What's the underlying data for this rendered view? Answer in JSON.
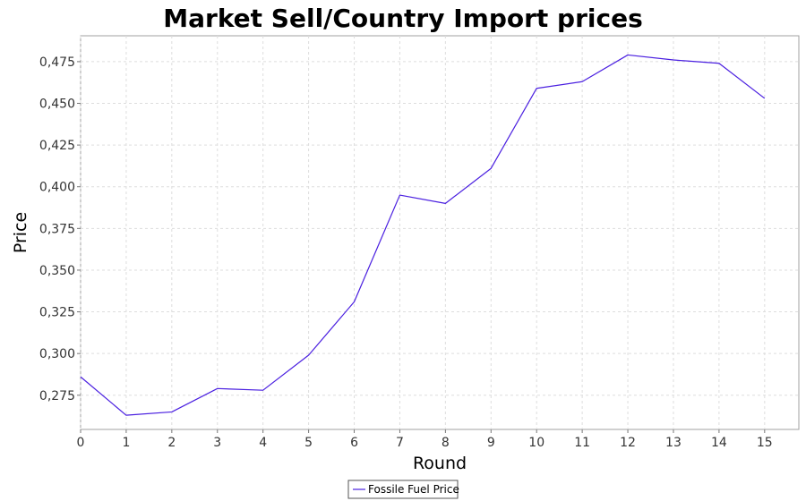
{
  "chart_data": {
    "type": "line",
    "title": "Market Sell/Country Import prices",
    "xlabel": "Round",
    "ylabel": "Price",
    "xlim": [
      0,
      15.75
    ],
    "ylim": [
      0.2545,
      0.4905
    ],
    "grid": true,
    "legend_position": "bottom-center",
    "x_ticks": [
      0,
      1,
      2,
      3,
      4,
      5,
      6,
      7,
      8,
      9,
      10,
      11,
      12,
      13,
      14,
      15
    ],
    "x_tick_labels": [
      "0",
      "1",
      "2",
      "3",
      "4",
      "5",
      "6",
      "7",
      "8",
      "9",
      "10",
      "11",
      "12",
      "13",
      "14",
      "15"
    ],
    "y_ticks": [
      0.275,
      0.3,
      0.325,
      0.35,
      0.375,
      0.4,
      0.425,
      0.45,
      0.475
    ],
    "y_tick_labels": [
      "0,275",
      "0,300",
      "0,325",
      "0,350",
      "0,375",
      "0,400",
      "0,425",
      "0,450",
      "0,475"
    ],
    "series": [
      {
        "name": "Fossile Fuel Price",
        "color": "#4a1fe0",
        "x": [
          0,
          1,
          2,
          3,
          4,
          5,
          6,
          7,
          8,
          9,
          10,
          11,
          12,
          13,
          14,
          15
        ],
        "values": [
          0.286,
          0.263,
          0.265,
          0.279,
          0.278,
          0.299,
          0.331,
          0.395,
          0.39,
          0.411,
          0.459,
          0.463,
          0.479,
          0.476,
          0.474,
          0.453
        ]
      }
    ]
  }
}
